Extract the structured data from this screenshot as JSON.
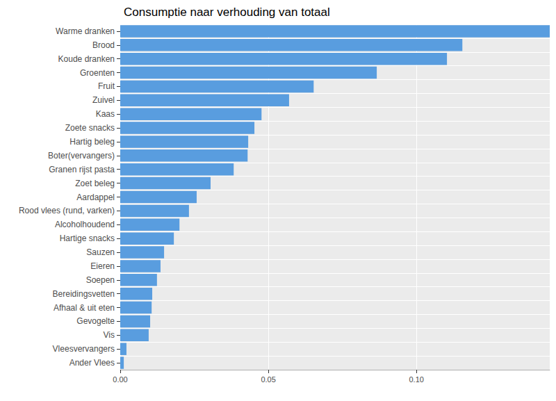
{
  "chart_data": {
    "type": "bar",
    "orientation": "horizontal",
    "title": "Consumptie naar verhouding van totaal",
    "categories": [
      "Warme dranken",
      "Brood",
      "Koude dranken",
      "Groenten",
      "Fruit",
      "Zuivel",
      "Kaas",
      "Zoete snacks",
      "Hartig beleg",
      "Boter(vervangers)",
      "Granen rijst pasta",
      "Zoet beleg",
      "Aardappel",
      "Rood vlees (rund, varken)",
      "Alcoholhoudend",
      "Hartige snacks",
      "Sauzen",
      "Eieren",
      "Soepen",
      "Bereidingsvetten",
      "Afhaal & uit eten",
      "Gevogelte",
      "Vis",
      "Vleesvervangers",
      "Ander Vlees"
    ],
    "values": [
      0.145,
      0.1155,
      0.1103,
      0.0866,
      0.0653,
      0.057,
      0.0477,
      0.0453,
      0.0432,
      0.043,
      0.0383,
      0.0305,
      0.0258,
      0.0232,
      0.02,
      0.0181,
      0.0148,
      0.0136,
      0.0124,
      0.0108,
      0.0106,
      0.0101,
      0.0096,
      0.0021,
      0.0012
    ],
    "color": "#599ddf",
    "xlim": [
      0,
      0.145
    ],
    "xticks": [
      {
        "value": 0,
        "label": "0.00"
      },
      {
        "value": 0.05,
        "label": "0.05"
      },
      {
        "value": 0.1,
        "label": "0.10"
      }
    ],
    "grid": true
  }
}
